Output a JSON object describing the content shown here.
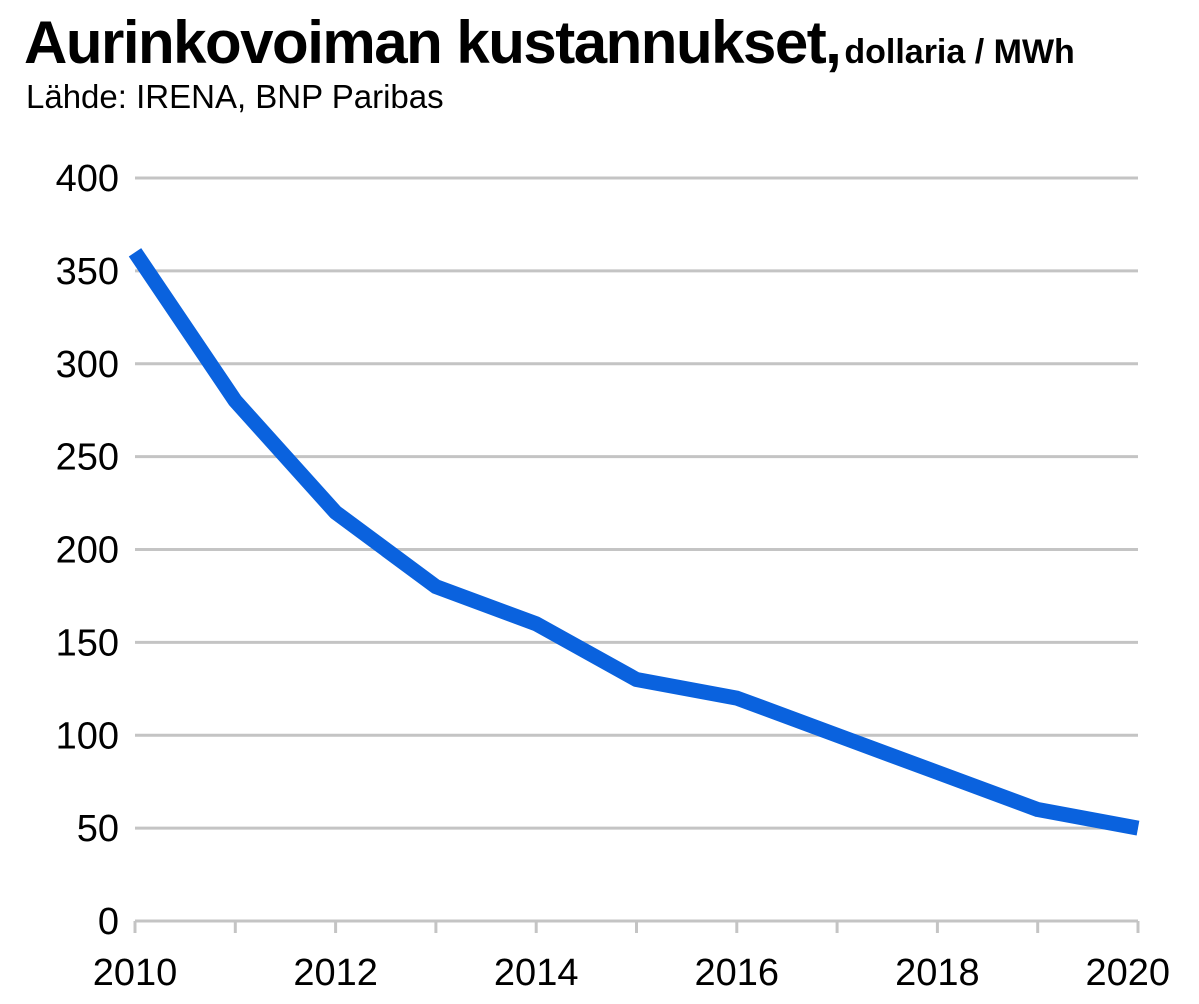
{
  "header": {
    "title": "Aurinkovoiman kustannukset,",
    "unit": "dollaria / MWh",
    "source": "Lähde: IRENA, BNP Paribas"
  },
  "chart_data": {
    "type": "line",
    "title": "Aurinkovoiman kustannukset,",
    "subtitle": "dollaria / MWh",
    "xlabel": "",
    "ylabel": "",
    "x": [
      2010,
      2011,
      2012,
      2013,
      2014,
      2015,
      2016,
      2017,
      2018,
      2019,
      2020
    ],
    "series": [
      {
        "values": [
          360,
          280,
          220,
          180,
          160,
          130,
          120,
          100,
          80,
          60,
          50
        ],
        "color": "#0a62de"
      }
    ],
    "xlim": [
      2010,
      2020
    ],
    "ylim": [
      0,
      400
    ],
    "yticks": [
      0,
      50,
      100,
      150,
      200,
      250,
      300,
      350,
      400
    ],
    "xtick_labels": [
      2010,
      2012,
      2014,
      2016,
      2018,
      2020
    ],
    "grid": "horizontal",
    "gridColor": "#c4c4c4"
  }
}
